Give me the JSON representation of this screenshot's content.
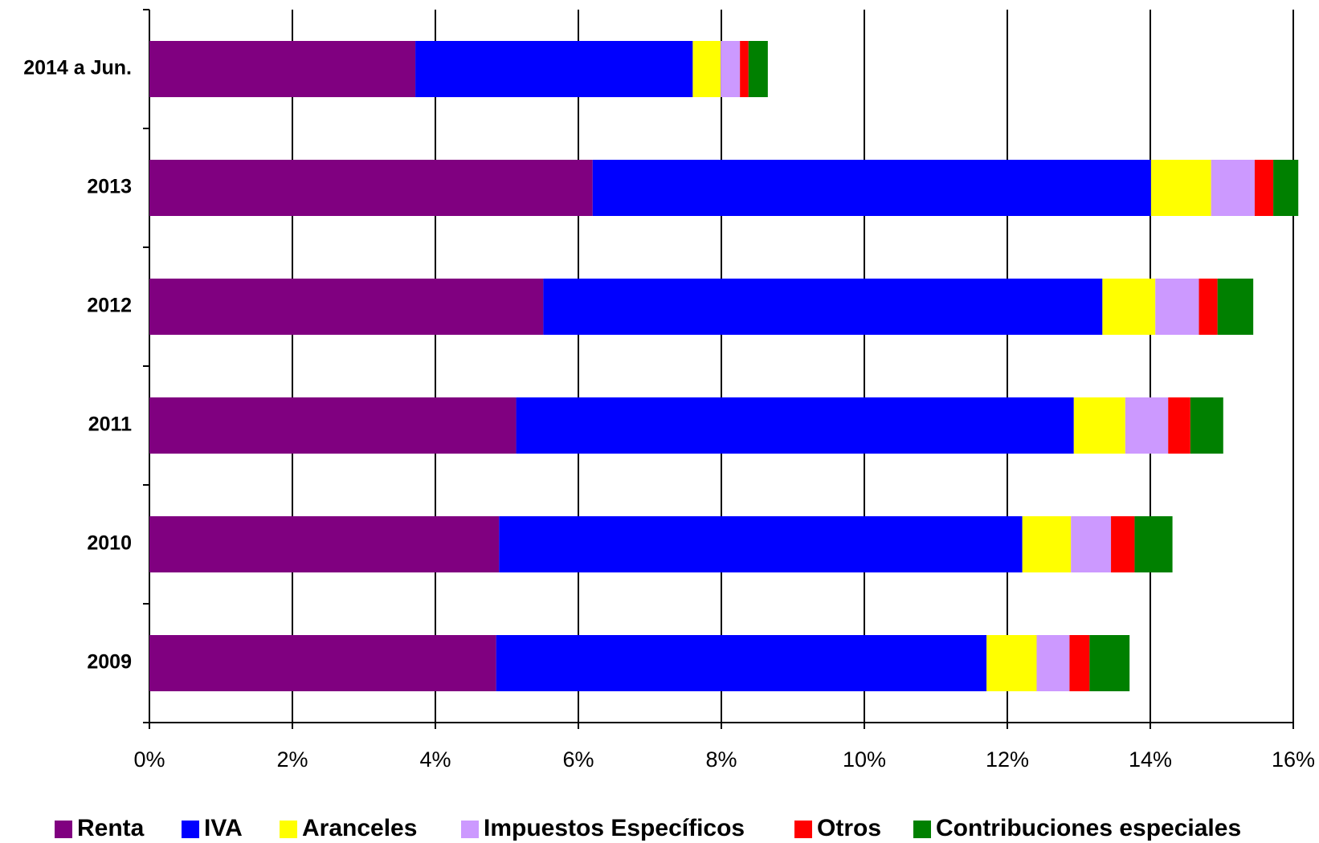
{
  "chart_data": {
    "type": "stacked_bar_horizontal",
    "categories": [
      "2014 a Jun.",
      "2013",
      "2012",
      "2011",
      "2010",
      "2009"
    ],
    "series": [
      {
        "name": "Renta",
        "color": "#800080",
        "values": [
          3.72,
          6.2,
          5.51,
          5.13,
          4.89,
          4.85
        ]
      },
      {
        "name": "IVA",
        "color": "#0000ff",
        "values": [
          3.88,
          7.81,
          7.82,
          7.8,
          7.32,
          6.86
        ]
      },
      {
        "name": "Aranceles",
        "color": "#ffff00",
        "values": [
          0.39,
          0.84,
          0.74,
          0.72,
          0.68,
          0.7
        ]
      },
      {
        "name": "Impuestos Específicos",
        "color": "#cc99ff",
        "values": [
          0.27,
          0.61,
          0.61,
          0.6,
          0.56,
          0.46
        ]
      },
      {
        "name": "Otros",
        "color": "#ff0000",
        "values": [
          0.12,
          0.26,
          0.26,
          0.31,
          0.33,
          0.28
        ]
      },
      {
        "name": "Contribuciones especiales",
        "color": "#008000",
        "values": [
          0.27,
          0.35,
          0.5,
          0.46,
          0.53,
          0.56
        ]
      }
    ],
    "xlim": [
      0,
      16
    ],
    "xticks": [
      {
        "value": 0,
        "label": "0%"
      },
      {
        "value": 2,
        "label": "2%"
      },
      {
        "value": 4,
        "label": "4%"
      },
      {
        "value": 6,
        "label": "6%"
      },
      {
        "value": 8,
        "label": "8%"
      },
      {
        "value": 10,
        "label": "10%"
      },
      {
        "value": 12,
        "label": "12%"
      },
      {
        "value": 14,
        "label": "14%"
      },
      {
        "value": 16,
        "label": "16%"
      }
    ],
    "grid": true,
    "legend": "bottom"
  }
}
